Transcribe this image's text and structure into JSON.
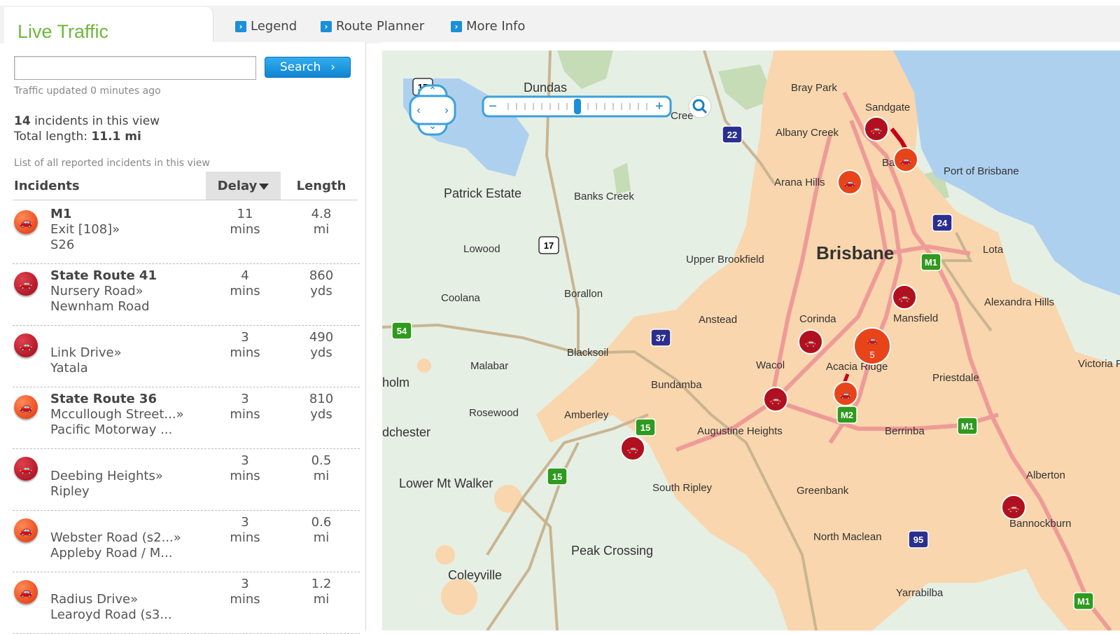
{
  "header": {
    "title": "Live Traffic",
    "links": [
      "Legend",
      "Route Planner",
      "More Info"
    ]
  },
  "search": {
    "value": "",
    "button_label": "Search"
  },
  "status": {
    "updated": "Traffic updated 0 minutes ago",
    "incident_count": "14",
    "incident_count_suffix": " incidents in this view",
    "total_length_label": "Total length: ",
    "total_length_value": "11.1 mi",
    "list_caption": "List of all reported incidents in this view"
  },
  "columns": {
    "incidents": "Incidents",
    "delay": "Delay",
    "length": "Length"
  },
  "incidents": [
    {
      "road": "M1",
      "from": "Exit [108]",
      "to": "S26",
      "delay": "11",
      "delay_unit": "mins",
      "length": "4.8",
      "length_unit": "mi",
      "severity": "orange"
    },
    {
      "road": "State Route 41",
      "from": "Nursery Road",
      "to": "Newnham Road",
      "delay": "4",
      "delay_unit": "mins",
      "length": "860",
      "length_unit": "yds",
      "severity": "dark"
    },
    {
      "road": "",
      "from": "Link Drive",
      "to": "Yatala",
      "delay": "3",
      "delay_unit": "mins",
      "length": "490",
      "length_unit": "yds",
      "severity": "dark"
    },
    {
      "road": "State Route 36",
      "from": "Mccullough Street...",
      "to": "Pacific Motorway ...",
      "delay": "3",
      "delay_unit": "mins",
      "length": "810",
      "length_unit": "yds",
      "severity": "orange"
    },
    {
      "road": "",
      "from": "Deebing Heights",
      "to": "Ripley",
      "delay": "3",
      "delay_unit": "mins",
      "length": "0.5",
      "length_unit": "mi",
      "severity": "dark"
    },
    {
      "road": "",
      "from": "Webster Road (s2...",
      "to": "Appleby Road / M...",
      "delay": "3",
      "delay_unit": "mins",
      "length": "0.6",
      "length_unit": "mi",
      "severity": "orange"
    },
    {
      "road": "",
      "from": "Radius Drive",
      "to": "Learoyd Road (s3...",
      "delay": "3",
      "delay_unit": "mins",
      "length": "1.2",
      "length_unit": "mi",
      "severity": "orange"
    }
  ],
  "map": {
    "labels": [
      "Bray Park",
      "Sandgate",
      "Albany Creek",
      "Dundas",
      "Patrick Estate",
      "Banks Creek",
      "Arana Hills",
      "Port of Brisbane",
      "Lowood",
      "Brisbane",
      "Upper Brookfield",
      "Lota",
      "Coolana",
      "Borallon",
      "Anstead",
      "Corinda",
      "Mansfield",
      "Alexandra Hills",
      "Malabar",
      "Blacksoil",
      "Wacol",
      "Acacia Ridge",
      "Priestdale",
      "Victoria P",
      "holm",
      "Bundamba",
      "Rosewood",
      "Amberley",
      "Augustine Heights",
      "Berrinba",
      "dchester",
      "Lower Mt Walker",
      "South Ripley",
      "Greenbank",
      "Alberton",
      "Bannockburn",
      "North Maclean",
      "Peak Crossing",
      "Coleyville",
      "Yarrabilba",
      "Ba",
      "Cree"
    ],
    "shields": [
      "17",
      "22",
      "24",
      "M1",
      "17",
      "54",
      "37",
      "15",
      "M2",
      "M1",
      "15",
      "95",
      "M1"
    ],
    "cluster_count": "5",
    "colors": {
      "urban": "#f9d6ad",
      "rural": "#e6efe4",
      "water": "#aed0ef",
      "road": "#c9b592",
      "congested": "#ee9b98",
      "forest": "#c5dcb6"
    }
  }
}
